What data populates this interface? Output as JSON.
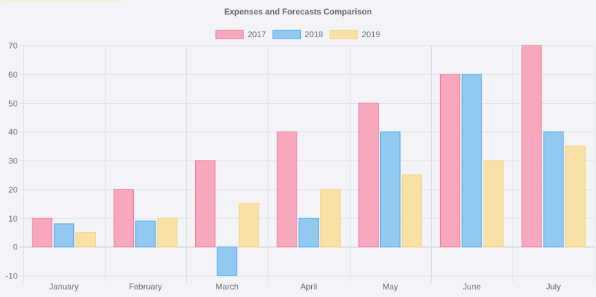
{
  "chart_data": {
    "type": "bar",
    "title": "Expenses and Forecasts Comparison",
    "xlabel": "",
    "ylabel": "",
    "categories": [
      "January",
      "February",
      "March",
      "April",
      "May",
      "June",
      "July"
    ],
    "series": [
      {
        "name": "2017",
        "values": [
          10,
          20,
          30,
          40,
          50,
          60,
          70
        ]
      },
      {
        "name": "2018",
        "values": [
          8,
          9,
          -10,
          10,
          40,
          60,
          40
        ]
      },
      {
        "name": "2019",
        "values": [
          5,
          10,
          15,
          20,
          25,
          30,
          35
        ]
      }
    ],
    "ylim": [
      -10,
      70
    ],
    "yticks": [
      -10,
      0,
      10,
      20,
      30,
      40,
      50,
      60,
      70
    ],
    "grid": true,
    "legend_position": "top",
    "colors": {
      "fill": [
        "#f7a8bd",
        "#92c9f1",
        "#f9e0a4"
      ],
      "stroke": [
        "#ec7692",
        "#4aa4e2",
        "#f5d27d"
      ],
      "grid": "#dcdde3",
      "zero_line": "#b8b8bc",
      "text": "#666666",
      "corner_tab": "#faefd2"
    }
  }
}
